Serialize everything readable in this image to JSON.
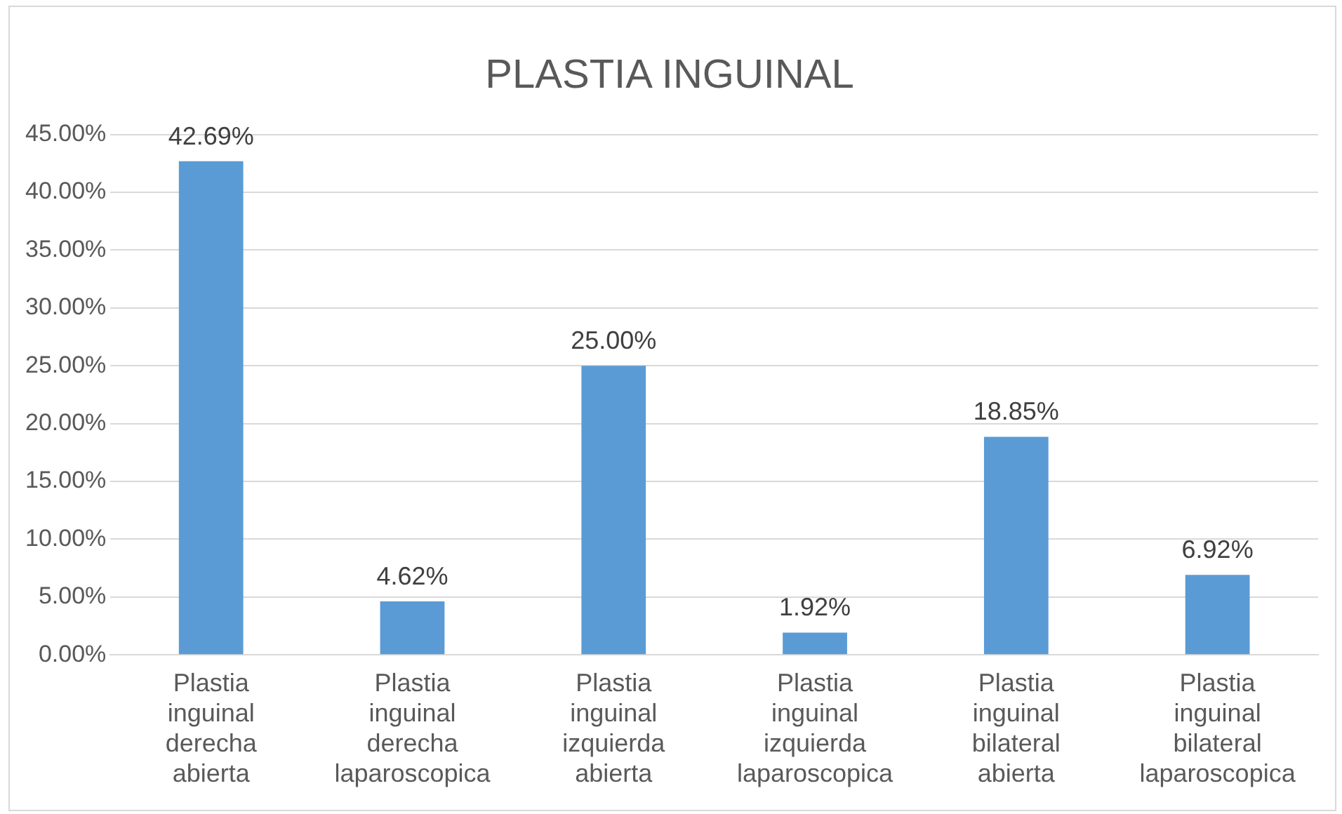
{
  "chart_data": {
    "type": "bar",
    "title": "PLASTIA INGUINAL",
    "categories": [
      "Plastia inguinal derecha abierta",
      "Plastia inguinal derecha laparoscopica",
      "Plastia inguinal izquierda abierta",
      "Plastia inguinal izquierda laparoscopica",
      "Plastia inguinal bilateral abierta",
      "Plastia inguinal bilateral laparoscopica"
    ],
    "values": [
      42.69,
      4.62,
      25,
      1.92,
      18.85,
      6.92
    ],
    "value_labels": [
      "42.69%",
      "4.62%",
      "25.00%",
      "1.92%",
      "18.85%",
      "6.92%"
    ],
    "color": "#5b9bd5",
    "ylim": [
      0,
      45
    ],
    "yticks": [
      {
        "value": 0,
        "label": "0.00%"
      },
      {
        "value": 5,
        "label": "5.00%"
      },
      {
        "value": 10,
        "label": "10.00%"
      },
      {
        "value": 15,
        "label": "15.00%"
      },
      {
        "value": 20,
        "label": "20.00%"
      },
      {
        "value": 25,
        "label": "25.00%"
      },
      {
        "value": 30,
        "label": "30.00%"
      },
      {
        "value": 35,
        "label": "35.00%"
      },
      {
        "value": 40,
        "label": "40.00%"
      },
      {
        "value": 45,
        "label": "45.00%"
      }
    ],
    "grid": "y",
    "legend": false
  }
}
